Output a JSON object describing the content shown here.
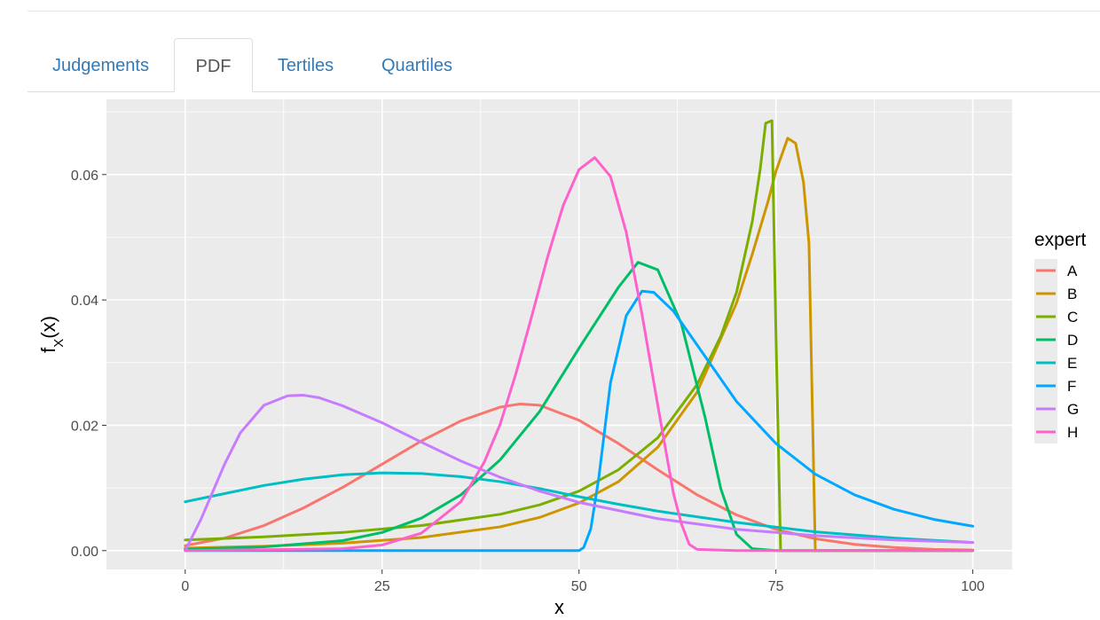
{
  "tabs": [
    {
      "label": "Judgements",
      "active": false
    },
    {
      "label": "PDF",
      "active": true
    },
    {
      "label": "Tertiles",
      "active": false
    },
    {
      "label": "Quartiles",
      "active": false
    }
  ],
  "colors": {
    "tab_link": "#337ab7",
    "tab_active_text": "#555555",
    "panel_background": "#ebebeb",
    "grid": "#ffffff"
  },
  "chart_data": {
    "type": "line",
    "xlabel": "x",
    "ylabel": "f_X(x)",
    "xlim": [
      -10,
      105
    ],
    "ylim": [
      -0.003,
      0.072
    ],
    "x_ticks": [
      0,
      25,
      50,
      75,
      100
    ],
    "x_tick_labels": [
      "0",
      "25",
      "50",
      "75",
      "100"
    ],
    "y_ticks": [
      0.0,
      0.02,
      0.04,
      0.06
    ],
    "y_tick_labels": [
      "0.00",
      "0.02",
      "0.04",
      "0.06"
    ],
    "grid": true,
    "legend": {
      "title": "expert",
      "position": "right"
    },
    "series": [
      {
        "name": "A",
        "color": "#F8766D",
        "x": [
          0,
          5,
          10,
          15,
          20,
          25,
          30,
          35,
          40,
          42.5,
          45,
          50,
          55,
          60,
          65,
          70,
          75,
          80,
          85,
          90,
          95,
          100
        ],
        "y": [
          0.0008,
          0.002,
          0.004,
          0.0068,
          0.0101,
          0.0138,
          0.0175,
          0.0207,
          0.0229,
          0.0234,
          0.0232,
          0.0208,
          0.0171,
          0.0129,
          0.0089,
          0.0057,
          0.0034,
          0.0019,
          0.001,
          0.0005,
          0.0002,
          0.0001
        ]
      },
      {
        "name": "B",
        "color": "#CD9600",
        "x": [
          0,
          10,
          20,
          30,
          40,
          45,
          50,
          55,
          60,
          65,
          70,
          72,
          74,
          75,
          76.5,
          77.5,
          78.5,
          79.2,
          80,
          85,
          90,
          100
        ],
        "y": [
          0.0004,
          0.0007,
          0.0012,
          0.0021,
          0.0038,
          0.0053,
          0.0076,
          0.011,
          0.0165,
          0.0253,
          0.0395,
          0.0473,
          0.0557,
          0.0605,
          0.0658,
          0.065,
          0.0588,
          0.049,
          0.0,
          0.0,
          0.0,
          0.0
        ]
      },
      {
        "name": "C",
        "color": "#7CAE00",
        "x": [
          0,
          10,
          20,
          30,
          40,
          45,
          50,
          55,
          60,
          65,
          68,
          70,
          72,
          73,
          73.7,
          74.5,
          75,
          75.6,
          80,
          90,
          100
        ],
        "y": [
          0.0017,
          0.0022,
          0.0029,
          0.004,
          0.0058,
          0.0073,
          0.0095,
          0.0129,
          0.018,
          0.0265,
          0.0342,
          0.0412,
          0.0525,
          0.0608,
          0.0682,
          0.0686,
          0.035,
          0.0,
          0.0,
          0.0,
          0.0
        ]
      },
      {
        "name": "D",
        "color": "#00BE67",
        "x": [
          0,
          10,
          20,
          25,
          30,
          35,
          40,
          45,
          50,
          55,
          57.5,
          60,
          63,
          66,
          68,
          70,
          72,
          75,
          80,
          100
        ],
        "y": [
          0.0002,
          0.0006,
          0.0016,
          0.0029,
          0.0052,
          0.0089,
          0.0145,
          0.0222,
          0.0323,
          0.042,
          0.046,
          0.0448,
          0.0362,
          0.0213,
          0.0099,
          0.0026,
          0.0003,
          0.0,
          0.0,
          0.0
        ]
      },
      {
        "name": "E",
        "color": "#00BFC4",
        "x": [
          0,
          5,
          10,
          15,
          20,
          25,
          30,
          35,
          40,
          45,
          50,
          55,
          60,
          70,
          80,
          90,
          100
        ],
        "y": [
          0.0078,
          0.0091,
          0.0104,
          0.0114,
          0.0121,
          0.0124,
          0.0123,
          0.0118,
          0.011,
          0.0099,
          0.0086,
          0.0074,
          0.0063,
          0.0045,
          0.003,
          0.002,
          0.0013
        ]
      },
      {
        "name": "F",
        "color": "#00A9FF",
        "x": [
          0,
          45,
          50,
          50.6,
          51.5,
          52.5,
          54,
          56,
          58,
          59.5,
          62,
          65,
          70,
          75,
          80,
          85,
          90,
          95,
          100
        ],
        "y": [
          0.0,
          0.0,
          0.0,
          0.0005,
          0.0035,
          0.0115,
          0.0268,
          0.0375,
          0.0414,
          0.0412,
          0.0382,
          0.0328,
          0.0238,
          0.0171,
          0.0122,
          0.0089,
          0.0066,
          0.005,
          0.0039
        ]
      },
      {
        "name": "G",
        "color": "#C77CFF",
        "x": [
          0,
          2,
          5,
          7,
          10,
          13,
          15,
          17,
          20,
          25,
          30,
          35,
          40,
          45,
          50,
          60,
          70,
          80,
          90,
          100
        ],
        "y": [
          0.0,
          0.005,
          0.0138,
          0.0188,
          0.0232,
          0.0247,
          0.0248,
          0.0244,
          0.0231,
          0.0204,
          0.0173,
          0.0143,
          0.0117,
          0.0095,
          0.0077,
          0.0051,
          0.0034,
          0.0024,
          0.0017,
          0.0013
        ]
      },
      {
        "name": "H",
        "color": "#FF61CC",
        "x": [
          0,
          20,
          25,
          30,
          35,
          38,
          40,
          42,
          44,
          46,
          48,
          50,
          52,
          54,
          56,
          58,
          60,
          62,
          63,
          64,
          65,
          70,
          100
        ],
        "y": [
          0.0,
          0.0003,
          0.0009,
          0.0028,
          0.0078,
          0.0142,
          0.0202,
          0.0283,
          0.0374,
          0.0468,
          0.0551,
          0.0608,
          0.0627,
          0.0597,
          0.0508,
          0.0377,
          0.0232,
          0.0091,
          0.0043,
          0.001,
          0.0002,
          0.0,
          0.0
        ]
      }
    ]
  }
}
